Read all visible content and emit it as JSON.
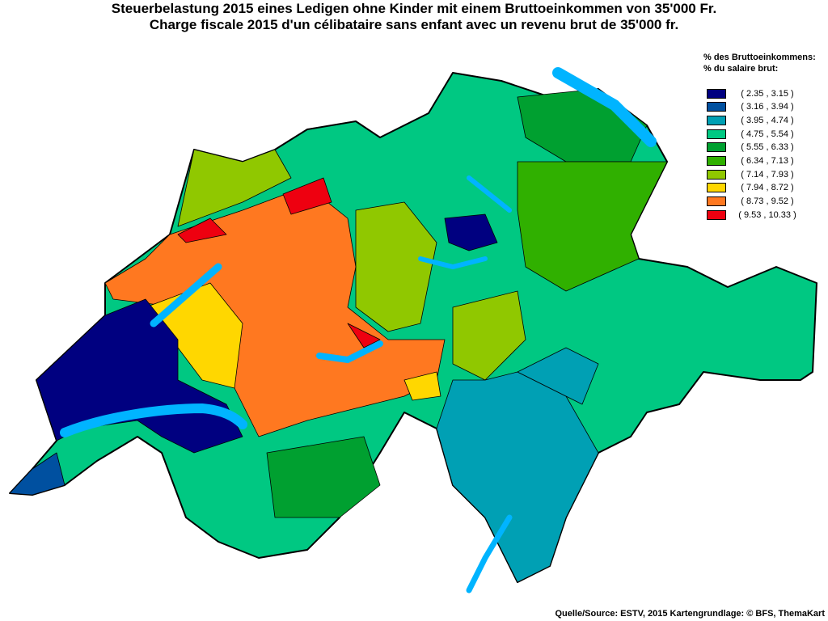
{
  "title": {
    "line1": "Steuerbelastung 2015 eines Ledigen ohne Kinder mit einem Bruttoeinkommen von 35'000 Fr.",
    "line2": "Charge fiscale 2015 d'un célibataire sans enfant avec un revenu brut de 35'000 fr."
  },
  "legend": {
    "title_de": "% des Bruttoeinkommens:",
    "title_fr": "% du salaire brut:",
    "classes": [
      {
        "label": "( 2.35 , 3.15 )",
        "color": "#000080"
      },
      {
        "label": "( 3.16 , 3.94 )",
        "color": "#0050a0"
      },
      {
        "label": "( 3.95 , 4.74 )",
        "color": "#00a0b4"
      },
      {
        "label": "( 4.75 , 5.54 )",
        "color": "#00c882"
      },
      {
        "label": "( 5.55 , 6.33 )",
        "color": "#00a030"
      },
      {
        "label": "( 6.34 , 7.13 )",
        "color": "#30b000"
      },
      {
        "label": "( 7.14 , 7.93 )",
        "color": "#90c800"
      },
      {
        "label": "( 7.94 , 8.72 )",
        "color": "#ffd700"
      },
      {
        "label": "( 8.73 , 9.52 )",
        "color": "#ff7820"
      },
      {
        "label": "( 9.53 , 10.33 )",
        "color": "#ee0010"
      }
    ]
  },
  "lake_color": "#00b4ff",
  "source": "Quelle/Source: ESTV, 2015 Kartengrundlage: © BFS, ThemaKart"
}
